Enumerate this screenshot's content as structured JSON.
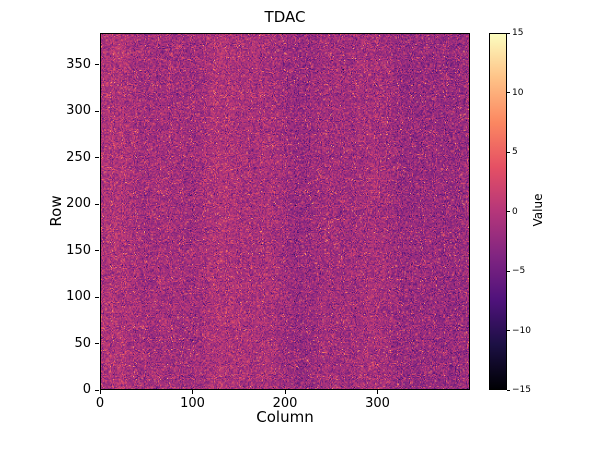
{
  "chart_data": {
    "type": "heatmap",
    "title": "TDAC",
    "xlabel": "Column",
    "ylabel": "Row",
    "colorbar_label": "Value",
    "x_range": [
      0,
      400
    ],
    "y_range": [
      0,
      384
    ],
    "x_ticks": [
      0,
      100,
      200,
      300
    ],
    "y_ticks": [
      0,
      50,
      100,
      150,
      200,
      250,
      300,
      350
    ],
    "colorbar_ticks": [
      15,
      10,
      5,
      0,
      -5,
      -10,
      -15
    ],
    "value_range": [
      -15,
      15
    ],
    "grid": false,
    "legend": false,
    "colormap": "magma",
    "colormap_stops": [
      "#000004",
      "#1c1044",
      "#4f127b",
      "#812581",
      "#b5367a",
      "#e55064",
      "#fb8761",
      "#fec287",
      "#fcfdbf"
    ],
    "frame_color": "#000000",
    "background_color": "#ffffff",
    "data_summary": {
      "description": "per-pixel random TDAC tuning values; bulk purple/magenta around -4..+2 with sparse bright pink/orange speckles up to ~9 and faint vertical column banding",
      "distribution": "approx normal",
      "mean": -1.5,
      "std": 2.4,
      "outlier_fraction": 0.025,
      "outlier_range": [
        3,
        9.5
      ],
      "rows": 384,
      "cols": 400,
      "noise_seed": 42
    }
  }
}
